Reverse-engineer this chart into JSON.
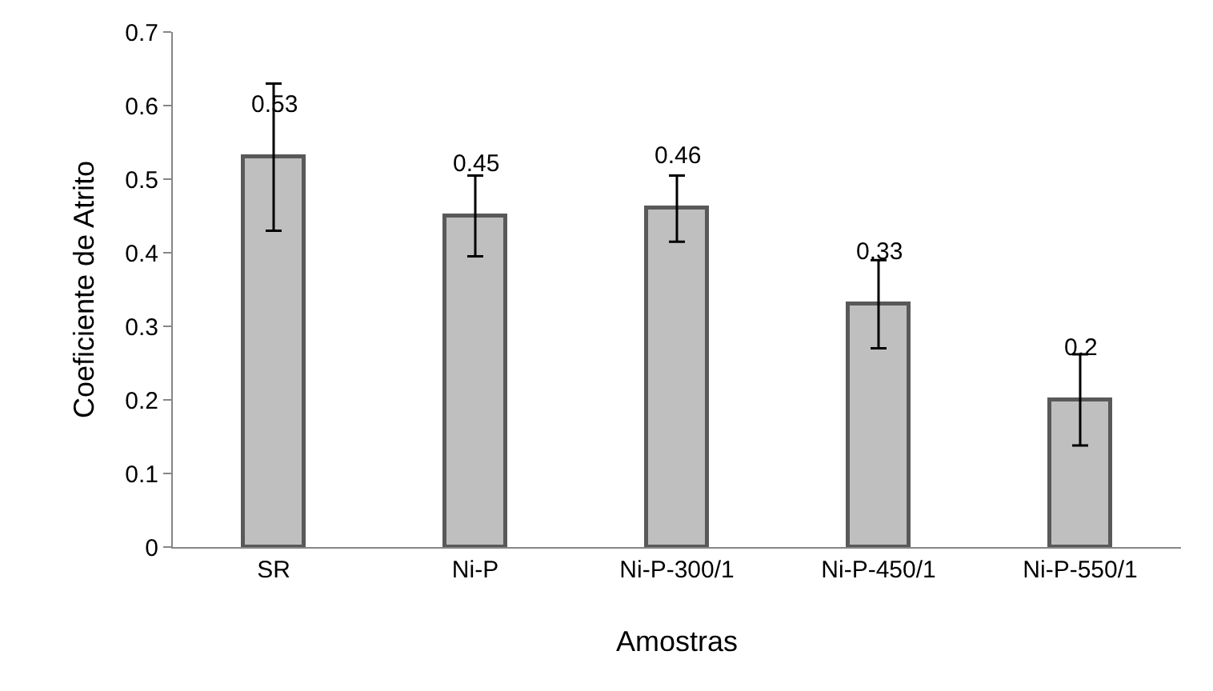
{
  "chart_data": {
    "type": "bar",
    "xlabel": "Amostras",
    "ylabel": "Coeficiente de Atrito",
    "categories": [
      "SR",
      "Ni-P",
      "Ni-P-300/1",
      "Ni-P-450/1",
      "Ni-P-550/1"
    ],
    "values": [
      0.53,
      0.45,
      0.46,
      0.33,
      0.2
    ],
    "errors": [
      0.1,
      0.055,
      0.045,
      0.06,
      0.062
    ],
    "color": "#bfbfbf",
    "data_labels": true,
    "ylim": [
      0,
      0.7
    ],
    "yticks": [
      0,
      0.1,
      0.2,
      0.3,
      0.4,
      0.5,
      0.6,
      0.7
    ],
    "grid": false
  }
}
